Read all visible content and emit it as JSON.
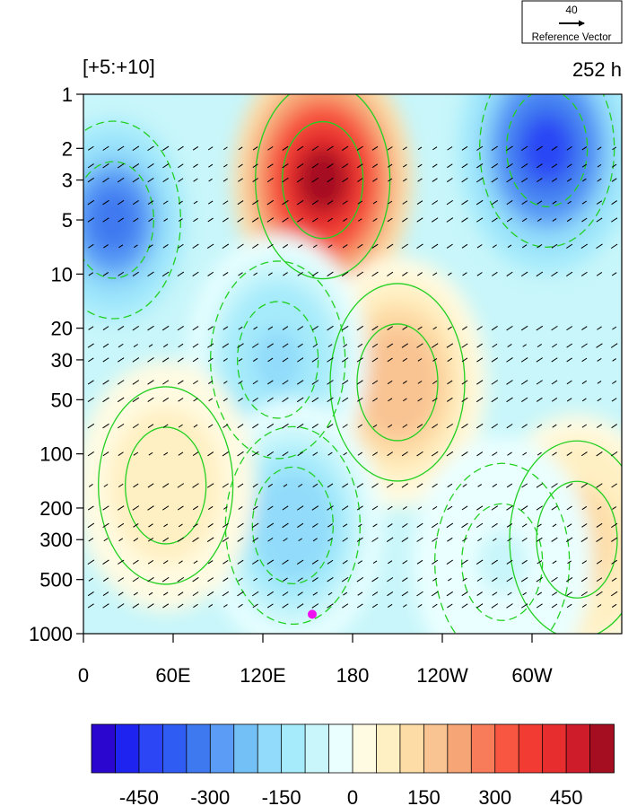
{
  "chart_data": {
    "type": "heatmap",
    "panel_label": "[+5:+10]",
    "time_label": "252 h",
    "reference_vector": {
      "magnitude": "40",
      "label": "Reference Vector"
    },
    "y_axis": {
      "scale": "log",
      "reversed": true,
      "range": [
        1000,
        1
      ],
      "ticks": [
        "1",
        "2",
        "3",
        "5",
        "10",
        "20",
        "30",
        "50",
        "100",
        "200",
        "300",
        "500",
        "1000"
      ]
    },
    "x_axis": {
      "range": [
        0,
        360
      ],
      "ticks": [
        "0",
        "60E",
        "120E",
        "180",
        "120W",
        "60W"
      ]
    },
    "colorbar": {
      "levels": [
        -550,
        -500,
        -450,
        -400,
        -350,
        -300,
        -250,
        -200,
        -150,
        -100,
        -50,
        0,
        50,
        100,
        150,
        200,
        250,
        300,
        350,
        400,
        450,
        500,
        550
      ],
      "tick_labels": [
        "-450",
        "-300",
        "-150",
        "0",
        "150",
        "300",
        "450"
      ],
      "colors": [
        "#2a06cf",
        "#1e23f0",
        "#2c46f5",
        "#2f5cf2",
        "#3f79f0",
        "#5a9cf6",
        "#73c0f6",
        "#92dbfa",
        "#a6ebfb",
        "#c8f6fa",
        "#eaffff",
        "#fffbe2",
        "#fff0c3",
        "#fddca6",
        "#f9c392",
        "#f6a576",
        "#f87c59",
        "#f85640",
        "#f23b32",
        "#e72d2d",
        "#cf1c2b",
        "#a50d20"
      ]
    },
    "fields": {
      "shaded_anomaly": [
        {
          "lon": 160,
          "level": 3,
          "value": 560
        },
        {
          "lon": 210,
          "level": 40,
          "value": 190
        },
        {
          "lon": 310,
          "level": 2,
          "value": -420
        },
        {
          "lon": 20,
          "level": 5,
          "value": -330
        },
        {
          "lon": 130,
          "level": 30,
          "value": -170
        },
        {
          "lon": 140,
          "level": 250,
          "value": -190
        },
        {
          "lon": 55,
          "level": 150,
          "value": 90
        },
        {
          "lon": 330,
          "level": 300,
          "value": 130
        },
        {
          "lon": 280,
          "level": 400,
          "value": -60
        }
      ],
      "contours": [
        {
          "style": "solid",
          "color": "#22d022"
        },
        {
          "style": "dashed",
          "color": "#22d022"
        }
      ],
      "marker": {
        "lon": 153,
        "level": 780,
        "color": "#ee11ee"
      }
    }
  }
}
